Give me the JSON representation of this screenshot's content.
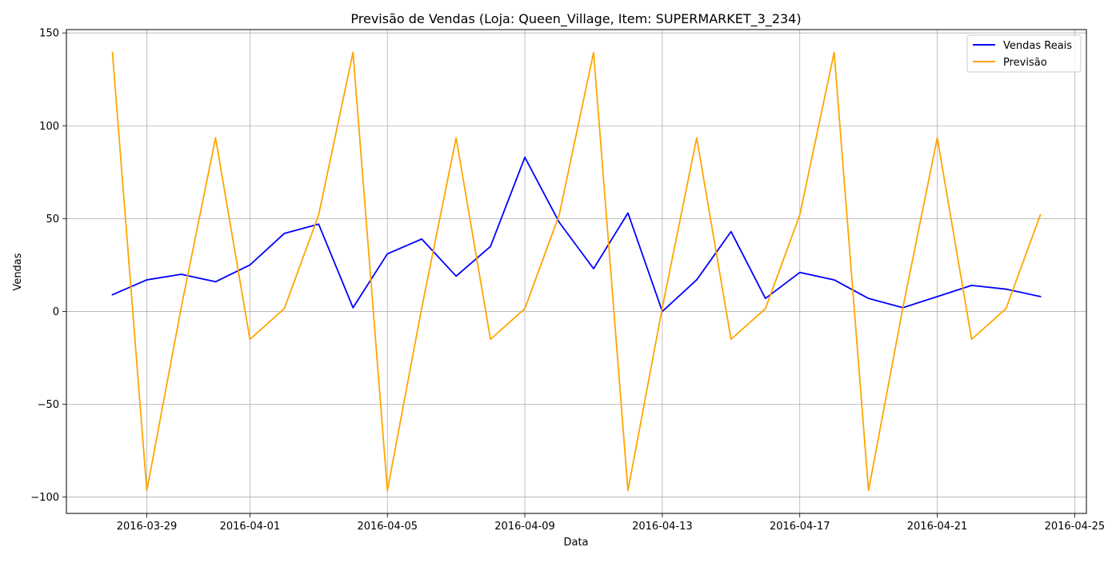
{
  "chart_data": {
    "type": "line",
    "title": "Previsão de Vendas (Loja: Queen_Village, Item: SUPERMARKET_3_234)",
    "xlabel": "Data",
    "ylabel": "Vendas",
    "x": [
      "2016-03-28",
      "2016-03-29",
      "2016-03-30",
      "2016-03-31",
      "2016-04-01",
      "2016-04-02",
      "2016-04-03",
      "2016-04-04",
      "2016-04-05",
      "2016-04-06",
      "2016-04-07",
      "2016-04-08",
      "2016-04-09",
      "2016-04-10",
      "2016-04-11",
      "2016-04-12",
      "2016-04-13",
      "2016-04-14",
      "2016-04-15",
      "2016-04-16",
      "2016-04-17",
      "2016-04-18",
      "2016-04-19",
      "2016-04-20",
      "2016-04-21",
      "2016-04-22",
      "2016-04-23",
      "2016-04-24"
    ],
    "series": [
      {
        "name": "Vendas Reais",
        "color": "#0000ff",
        "values": [
          9,
          17,
          20,
          16,
          25,
          42,
          47,
          2,
          31,
          39,
          19,
          35,
          83,
          48,
          23,
          53,
          0,
          17,
          43,
          7,
          21,
          17,
          7,
          2,
          8,
          14,
          12,
          8
        ]
      },
      {
        "name": "Previsão",
        "color": "#ffa500",
        "values": [
          139.5,
          -96.5,
          2,
          93.5,
          -15,
          1.5,
          52,
          139.5,
          -96.5,
          2,
          93.5,
          -15,
          1.5,
          52,
          139.5,
          -96.5,
          2,
          93.5,
          -15,
          1.5,
          52,
          139.5,
          -96.5,
          2,
          93.5,
          -15,
          1.5,
          52
        ]
      }
    ],
    "xticks": [
      "2016-03-29",
      "2016-04-01",
      "2016-04-05",
      "2016-04-09",
      "2016-04-13",
      "2016-04-17",
      "2016-04-21",
      "2016-04-25"
    ],
    "xlim": [
      "2016-03-26.66",
      "2016-04-25.34"
    ],
    "yticks": [
      -100,
      -50,
      0,
      50,
      100,
      150
    ],
    "ylim": [
      -108.8,
      151.8
    ],
    "grid": true,
    "legend_position": "top-right"
  }
}
